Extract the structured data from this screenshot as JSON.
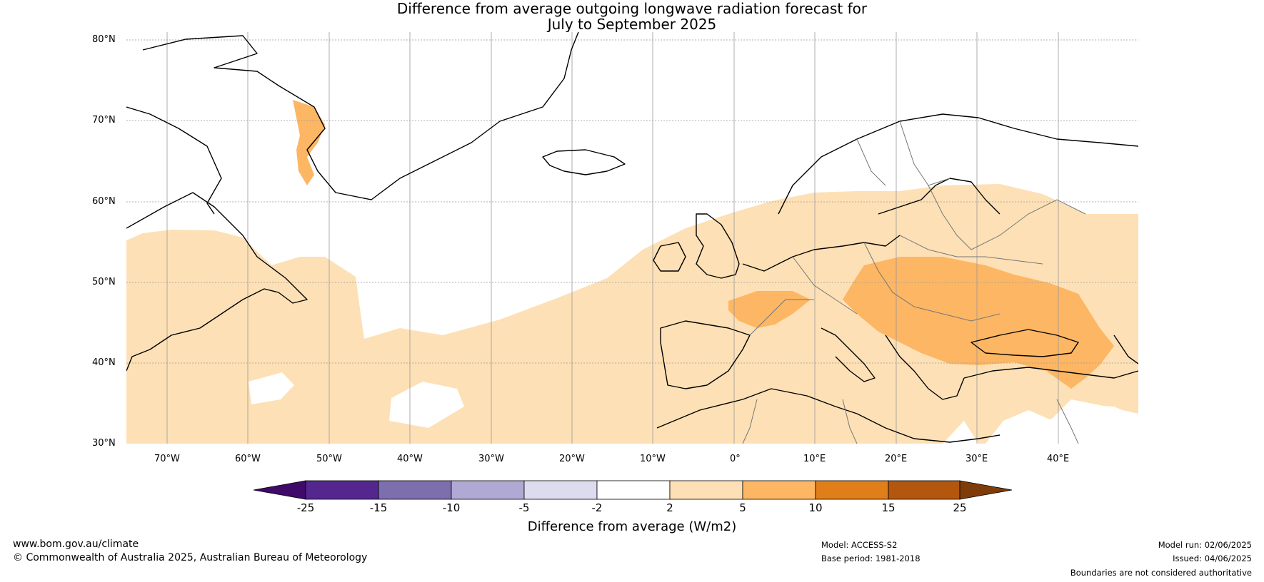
{
  "title": {
    "line1": "Difference from average outgoing longwave radiation forecast for",
    "line2": "July to September 2025"
  },
  "map": {
    "lat_labels": [
      "80°N",
      "70°N",
      "60°N",
      "50°N",
      "40°N",
      "30°N"
    ],
    "lon_labels": [
      "70°W",
      "60°W",
      "50°W",
      "40°W",
      "30°W",
      "20°W",
      "10°W",
      "0°",
      "10°E",
      "20°E",
      "30°E",
      "40°E"
    ]
  },
  "colorbar": {
    "title": "Difference from average (W/m2)",
    "ticks": [
      "-25",
      "-15",
      "-10",
      "-5",
      "-2",
      "2",
      "5",
      "10",
      "15",
      "25"
    ],
    "colors": [
      "#3f0a6a",
      "#54278f",
      "#7d6fae",
      "#b0a9d3",
      "#dcdcee",
      "#ffffff",
      "#fde0b5",
      "#fdb663",
      "#e07e1a",
      "#b3560e",
      "#7f3b08"
    ]
  },
  "footer": {
    "website": "www.bom.gov.au/climate",
    "copyright": "© Commonwealth of Australia 2025, Australian Bureau of Meteorology",
    "model": "Model: ACCESS-S2",
    "base_period": "Base period: 1981-2018",
    "model_run": "Model run: 02/06/2025",
    "issued": "Issued: 04/06/2025",
    "disclaimer": "Boundaries are not considered authoritative"
  }
}
